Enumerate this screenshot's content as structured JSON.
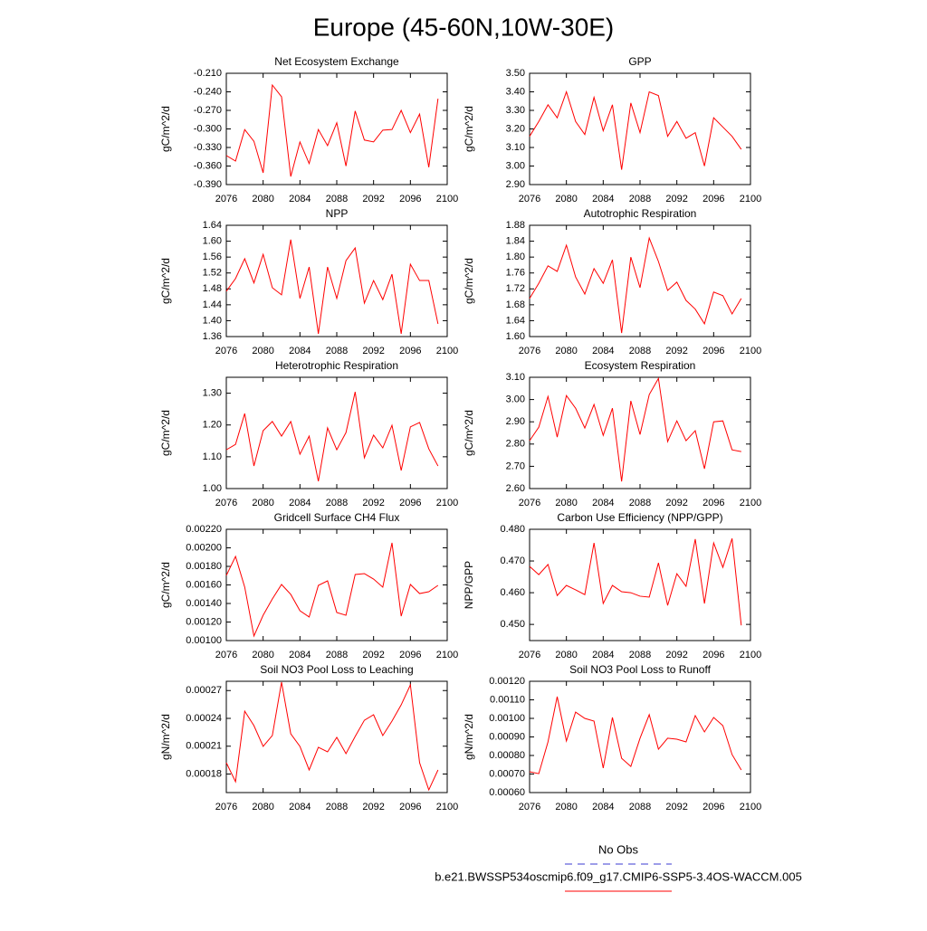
{
  "title": "Europe (45-60N,10W-30E)",
  "legend": [
    {
      "name": "No Obs",
      "color": "#3b3bd1",
      "dashed": true
    },
    {
      "name": "b.e21.BWSSP534oscmip6.f09_g17.CMIP6-SSP5-3.4OS-WACCM.005",
      "color": "#ff0000",
      "dashed": false
    }
  ],
  "chart_data": [
    {
      "type": "line",
      "title": "Net Ecosystem Exchange",
      "ylabel": "gC/m^2/d",
      "x": [
        2076,
        2077,
        2078,
        2079,
        2080,
        2081,
        2082,
        2083,
        2084,
        2085,
        2086,
        2087,
        2088,
        2089,
        2090,
        2091,
        2092,
        2093,
        2094,
        2095,
        2096,
        2097,
        2098,
        2099
      ],
      "series": [
        {
          "color": "#ff0000",
          "values": [
            -0.343,
            -0.352,
            -0.301,
            -0.32,
            -0.371,
            -0.229,
            -0.248,
            -0.377,
            -0.321,
            -0.356,
            -0.301,
            -0.327,
            -0.29,
            -0.36,
            -0.271,
            -0.318,
            -0.321,
            -0.302,
            -0.301,
            -0.27,
            -0.306,
            -0.276,
            -0.362,
            -0.251
          ]
        }
      ],
      "xlim": [
        2076,
        2100
      ],
      "xticks": [
        2076,
        2080,
        2084,
        2088,
        2092,
        2096,
        2100
      ],
      "ylim": [
        -0.39,
        -0.21
      ],
      "yticks": [
        {
          "value": -0.39,
          "label": "-0.390"
        },
        {
          "value": -0.36,
          "label": "-0.360"
        },
        {
          "value": -0.33,
          "label": "-0.330"
        },
        {
          "value": -0.3,
          "label": "-0.300"
        },
        {
          "value": -0.27,
          "label": "-0.270"
        },
        {
          "value": -0.24,
          "label": "-0.240"
        },
        {
          "value": -0.21,
          "label": "-0.210"
        }
      ]
    },
    {
      "type": "line",
      "title": "GPP",
      "ylabel": "gC/m^2/d",
      "x": [
        2076,
        2077,
        2078,
        2079,
        2080,
        2081,
        2082,
        2083,
        2084,
        2085,
        2086,
        2087,
        2088,
        2089,
        2090,
        2091,
        2092,
        2093,
        2094,
        2095,
        2096,
        2097,
        2098,
        2099
      ],
      "series": [
        {
          "color": "#ff0000",
          "values": [
            3.16,
            3.24,
            3.33,
            3.26,
            3.4,
            3.24,
            3.17,
            3.37,
            3.19,
            3.33,
            2.98,
            3.34,
            3.18,
            3.4,
            3.38,
            3.16,
            3.24,
            3.15,
            3.18,
            3.0,
            3.26,
            3.21,
            3.16,
            3.09
          ]
        }
      ],
      "xlim": [
        2076,
        2100
      ],
      "xticks": [
        2076,
        2080,
        2084,
        2088,
        2092,
        2096,
        2100
      ],
      "ylim": [
        2.9,
        3.5
      ],
      "yticks": [
        {
          "value": 2.9,
          "label": "2.90"
        },
        {
          "value": 3.0,
          "label": "3.00"
        },
        {
          "value": 3.1,
          "label": "3.10"
        },
        {
          "value": 3.2,
          "label": "3.20"
        },
        {
          "value": 3.3,
          "label": "3.30"
        },
        {
          "value": 3.4,
          "label": "3.40"
        },
        {
          "value": 3.5,
          "label": "3.50"
        }
      ]
    },
    {
      "type": "line",
      "title": "NPP",
      "ylabel": "gC/m^2/d",
      "x": [
        2076,
        2077,
        2078,
        2079,
        2080,
        2081,
        2082,
        2083,
        2084,
        2085,
        2086,
        2087,
        2088,
        2089,
        2090,
        2091,
        2092,
        2093,
        2094,
        2095,
        2096,
        2097,
        2098,
        2099
      ],
      "series": [
        {
          "color": "#ff0000",
          "values": [
            1.474,
            1.506,
            1.556,
            1.495,
            1.567,
            1.483,
            1.465,
            1.604,
            1.456,
            1.535,
            1.367,
            1.535,
            1.456,
            1.551,
            1.583,
            1.444,
            1.501,
            1.453,
            1.517,
            1.367,
            1.542,
            1.501,
            1.501,
            1.392
          ]
        }
      ],
      "xlim": [
        2076,
        2100
      ],
      "xticks": [
        2076,
        2080,
        2084,
        2088,
        2092,
        2096,
        2100
      ],
      "ylim": [
        1.36,
        1.64
      ],
      "yticks": [
        {
          "value": 1.36,
          "label": "1.36"
        },
        {
          "value": 1.4,
          "label": "1.40"
        },
        {
          "value": 1.44,
          "label": "1.44"
        },
        {
          "value": 1.48,
          "label": "1.48"
        },
        {
          "value": 1.52,
          "label": "1.52"
        },
        {
          "value": 1.56,
          "label": "1.56"
        },
        {
          "value": 1.6,
          "label": "1.60"
        },
        {
          "value": 1.64,
          "label": "1.64"
        }
      ]
    },
    {
      "type": "line",
      "title": "Autotrophic Respiration",
      "ylabel": "gC/m^2/d",
      "x": [
        2076,
        2077,
        2078,
        2079,
        2080,
        2081,
        2082,
        2083,
        2084,
        2085,
        2086,
        2087,
        2088,
        2089,
        2090,
        2091,
        2092,
        2093,
        2094,
        2095,
        2096,
        2097,
        2098,
        2099
      ],
      "series": [
        {
          "color": "#ff0000",
          "values": [
            1.696,
            1.734,
            1.778,
            1.764,
            1.83,
            1.75,
            1.707,
            1.771,
            1.734,
            1.793,
            1.609,
            1.8,
            1.723,
            1.848,
            1.789,
            1.716,
            1.737,
            1.691,
            1.669,
            1.632,
            1.712,
            1.703,
            1.657,
            1.696
          ]
        }
      ],
      "xlim": [
        2076,
        2100
      ],
      "xticks": [
        2076,
        2080,
        2084,
        2088,
        2092,
        2096,
        2100
      ],
      "ylim": [
        1.6,
        1.88
      ],
      "yticks": [
        {
          "value": 1.6,
          "label": "1.60"
        },
        {
          "value": 1.64,
          "label": "1.64"
        },
        {
          "value": 1.68,
          "label": "1.68"
        },
        {
          "value": 1.72,
          "label": "1.72"
        },
        {
          "value": 1.76,
          "label": "1.76"
        },
        {
          "value": 1.8,
          "label": "1.80"
        },
        {
          "value": 1.84,
          "label": "1.84"
        },
        {
          "value": 1.88,
          "label": "1.88"
        }
      ]
    },
    {
      "type": "line",
      "title": "Heterotrophic Respiration",
      "ylabel": "gC/m^2/d",
      "x": [
        2076,
        2077,
        2078,
        2079,
        2080,
        2081,
        2082,
        2083,
        2084,
        2085,
        2086,
        2087,
        2088,
        2089,
        2090,
        2091,
        2092,
        2093,
        2094,
        2095,
        2096,
        2097,
        2098,
        2099
      ],
      "series": [
        {
          "color": "#ff0000",
          "values": [
            1.122,
            1.139,
            1.236,
            1.071,
            1.182,
            1.211,
            1.165,
            1.211,
            1.108,
            1.165,
            1.023,
            1.191,
            1.122,
            1.176,
            1.304,
            1.097,
            1.168,
            1.128,
            1.199,
            1.057,
            1.194,
            1.208,
            1.125,
            1.071
          ]
        }
      ],
      "xlim": [
        2076,
        2100
      ],
      "xticks": [
        2076,
        2080,
        2084,
        2088,
        2092,
        2096,
        2100
      ],
      "ylim": [
        1.0,
        1.35
      ],
      "yticks": [
        {
          "value": 1.0,
          "label": "1.00"
        },
        {
          "value": 1.1,
          "label": "1.10"
        },
        {
          "value": 1.2,
          "label": "1.20"
        },
        {
          "value": 1.3,
          "label": "1.30"
        }
      ]
    },
    {
      "type": "line",
      "title": "Ecosystem Respiration",
      "ylabel": "gC/m^2/d",
      "x": [
        2076,
        2077,
        2078,
        2079,
        2080,
        2081,
        2082,
        2083,
        2084,
        2085,
        2086,
        2087,
        2088,
        2089,
        2090,
        2091,
        2092,
        2093,
        2094,
        2095,
        2096,
        2097,
        2098,
        2099
      ],
      "series": [
        {
          "color": "#ff0000",
          "values": [
            2.815,
            2.876,
            3.014,
            2.831,
            3.018,
            2.961,
            2.872,
            2.978,
            2.839,
            2.961,
            2.632,
            2.994,
            2.843,
            3.022,
            3.095,
            2.811,
            2.904,
            2.815,
            2.86,
            2.689,
            2.9,
            2.904,
            2.774,
            2.766
          ]
        }
      ],
      "xlim": [
        2076,
        2100
      ],
      "xticks": [
        2076,
        2080,
        2084,
        2088,
        2092,
        2096,
        2100
      ],
      "ylim": [
        2.6,
        3.1
      ],
      "yticks": [
        {
          "value": 2.6,
          "label": "2.60"
        },
        {
          "value": 2.7,
          "label": "2.70"
        },
        {
          "value": 2.8,
          "label": "2.80"
        },
        {
          "value": 2.9,
          "label": "2.90"
        },
        {
          "value": 3.0,
          "label": "3.00"
        },
        {
          "value": 3.1,
          "label": "3.10"
        }
      ]
    },
    {
      "type": "line",
      "title": "Gridcell Surface CH4 Flux",
      "ylabel": "gC/m^2/d",
      "x": [
        2076,
        2077,
        2078,
        2079,
        2080,
        2081,
        2082,
        2083,
        2084,
        2085,
        2086,
        2087,
        2088,
        2089,
        2090,
        2091,
        2092,
        2093,
        2094,
        2095,
        2096,
        2097,
        2098,
        2099
      ],
      "series": [
        {
          "color": "#ff0000",
          "values": [
            0.001702,
            0.001907,
            0.001576,
            0.001049,
            0.001273,
            0.001449,
            0.001605,
            0.001498,
            0.001322,
            0.001254,
            0.001595,
            0.001644,
            0.001303,
            0.001273,
            0.001712,
            0.001722,
            0.001663,
            0.001576,
            0.002054,
            0.001263,
            0.001605,
            0.001507,
            0.001527,
            0.001595
          ]
        }
      ],
      "xlim": [
        2076,
        2100
      ],
      "xticks": [
        2076,
        2080,
        2084,
        2088,
        2092,
        2096,
        2100
      ],
      "ylim": [
        0.001,
        0.0022
      ],
      "yticks": [
        {
          "value": 0.001,
          "label": "0.00100"
        },
        {
          "value": 0.0012,
          "label": "0.00120"
        },
        {
          "value": 0.0014,
          "label": "0.00140"
        },
        {
          "value": 0.0016,
          "label": "0.00160"
        },
        {
          "value": 0.0018,
          "label": "0.00180"
        },
        {
          "value": 0.002,
          "label": "0.00200"
        },
        {
          "value": 0.0022,
          "label": "0.00220"
        }
      ]
    },
    {
      "type": "line",
      "title": "Carbon Use Efficiency (NPP/GPP)",
      "ylabel": "NPP/GPP",
      "x": [
        2076,
        2077,
        2078,
        2079,
        2080,
        2081,
        2082,
        2083,
        2084,
        2085,
        2086,
        2087,
        2088,
        2089,
        2090,
        2091,
        2092,
        2093,
        2094,
        2095,
        2096,
        2097,
        2098,
        2099
      ],
      "series": [
        {
          "color": "#ff0000",
          "values": [
            0.4683,
            0.4657,
            0.4689,
            0.4591,
            0.4623,
            0.4609,
            0.4594,
            0.4757,
            0.4566,
            0.4623,
            0.4603,
            0.46,
            0.4589,
            0.4586,
            0.4694,
            0.456,
            0.466,
            0.462,
            0.4769,
            0.4566,
            0.4757,
            0.468,
            0.4771,
            0.4497
          ]
        }
      ],
      "xlim": [
        2076,
        2100
      ],
      "xticks": [
        2076,
        2080,
        2084,
        2088,
        2092,
        2096,
        2100
      ],
      "ylim": [
        0.4449,
        0.48
      ],
      "yticks": [
        {
          "value": 0.45,
          "label": "0.450"
        },
        {
          "value": 0.46,
          "label": "0.460"
        },
        {
          "value": 0.47,
          "label": "0.470"
        },
        {
          "value": 0.48,
          "label": "0.480"
        }
      ]
    },
    {
      "type": "line",
      "title": "Soil NO3 Pool Loss to Leaching",
      "ylabel": "gN/m^2/d",
      "x": [
        2076,
        2077,
        2078,
        2079,
        2080,
        2081,
        2082,
        2083,
        2084,
        2085,
        2086,
        2087,
        2088,
        2089,
        2090,
        2091,
        2092,
        2093,
        2094,
        2095,
        2096,
        2097,
        2098,
        2099
      ],
      "series": [
        {
          "color": "#ff0000",
          "values": [
            0.0001922,
            0.0001717,
            0.0002478,
            0.0002322,
            0.0002098,
            0.0002215,
            0.000279,
            0.0002234,
            0.0002098,
            0.0001844,
            0.0002088,
            0.0002039,
            0.0002195,
            0.000202,
            0.0002205,
            0.000238,
            0.0002439,
            0.0002215,
            0.0002371,
            0.0002546,
            0.0002761,
            0.0001922,
            0.0001629,
            0.0001844
          ]
        }
      ],
      "xlim": [
        2076,
        2100
      ],
      "xticks": [
        2076,
        2080,
        2084,
        2088,
        2092,
        2096,
        2100
      ],
      "ylim": [
        0.00016,
        0.00028
      ],
      "yticks": [
        {
          "value": 0.00018,
          "label": "0.00018"
        },
        {
          "value": 0.00021,
          "label": "0.00021"
        },
        {
          "value": 0.00024,
          "label": "0.00024"
        },
        {
          "value": 0.00027,
          "label": "0.00027"
        }
      ]
    },
    {
      "type": "line",
      "title": "Soil NO3 Pool Loss to Runoff",
      "ylabel": "gN/m^2/d",
      "x": [
        2076,
        2077,
        2078,
        2079,
        2080,
        2081,
        2082,
        2083,
        2084,
        2085,
        2086,
        2087,
        2088,
        2089,
        2090,
        2091,
        2092,
        2093,
        2094,
        2095,
        2096,
        2097,
        2098,
        2099
      ],
      "series": [
        {
          "color": "#ff0000",
          "values": [
            0.000712,
            0.000702,
            0.000873,
            0.001117,
            0.000878,
            0.001034,
            0.001,
            0.000985,
            0.000732,
            0.001005,
            0.000785,
            0.000741,
            0.000893,
            0.00102,
            0.000834,
            0.000893,
            0.000888,
            0.000873,
            0.001015,
            0.000927,
            0.001005,
            0.000961,
            0.000805,
            0.000722
          ]
        }
      ],
      "xlim": [
        2076,
        2100
      ],
      "xticks": [
        2076,
        2080,
        2084,
        2088,
        2092,
        2096,
        2100
      ],
      "ylim": [
        0.0006,
        0.0012
      ],
      "yticks": [
        {
          "value": 0.0006,
          "label": "0.00060"
        },
        {
          "value": 0.0007,
          "label": "0.00070"
        },
        {
          "value": 0.0008,
          "label": "0.00080"
        },
        {
          "value": 0.0009,
          "label": "0.00090"
        },
        {
          "value": 0.001,
          "label": "0.00100"
        },
        {
          "value": 0.0011,
          "label": "0.00110"
        },
        {
          "value": 0.0012,
          "label": "0.00120"
        }
      ]
    }
  ]
}
